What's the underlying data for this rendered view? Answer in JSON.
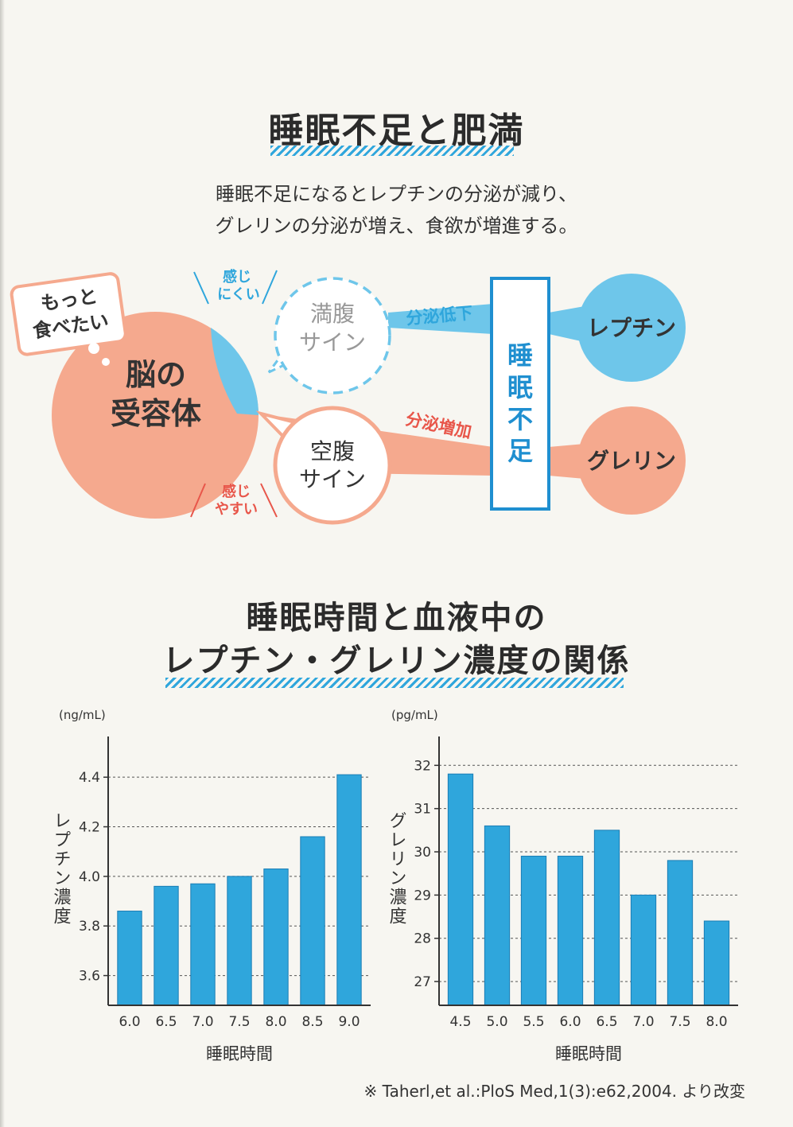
{
  "section1": {
    "title": "睡眠不足と肥満",
    "subtitle_line1": "睡眠不足になるとレプチンの分泌が減り、",
    "subtitle_line2": "グレリンの分泌が増え、食欲が増進する。"
  },
  "diagram": {
    "thought_line1": "もっと",
    "thought_line2": "食べたい",
    "brain_line1": "脳の",
    "brain_line2": "受容体",
    "hard_to_feel_line1": "感じ",
    "hard_to_feel_line2": "にくい",
    "easy_to_feel_line1": "感じ",
    "easy_to_feel_line2": "やすい",
    "full_line1": "満腹",
    "full_line2": "サイン",
    "hungry_line1": "空腹",
    "hungry_line2": "サイン",
    "decrease": "分泌低下",
    "increase": "分泌増加",
    "sleep_chars": [
      "睡",
      "眠",
      "不",
      "足"
    ],
    "leptin": "レプチン",
    "ghrelin": "グレリン",
    "colors": {
      "blue": "#6ec6ea",
      "orange": "#f5a98e",
      "red": "#e8564a",
      "box": "#1f8fd0"
    }
  },
  "section2": {
    "title_line1": "睡眠時間と血液中の",
    "title_line2": "レプチン・グレリン濃度の関係"
  },
  "chart_data": [
    {
      "type": "bar",
      "unit": "(ng/mL)",
      "ylabel": "レプチン濃度",
      "xlabel": "睡眠時間",
      "categories": [
        "6.0",
        "6.5",
        "7.0",
        "7.5",
        "8.0",
        "8.5",
        "9.0"
      ],
      "values": [
        3.86,
        3.96,
        3.97,
        4.0,
        4.03,
        4.16,
        4.41
      ],
      "yticks": [
        "3.6",
        "3.8",
        "4.0",
        "4.2",
        "4.4"
      ],
      "ylim": [
        3.48,
        4.5
      ],
      "grid": true,
      "color": "#2fa6dc"
    },
    {
      "type": "bar",
      "unit": "(pg/mL)",
      "ylabel": "グレリン濃度",
      "xlabel": "睡眠時間",
      "categories": [
        "4.5",
        "5.0",
        "5.5",
        "6.0",
        "6.5",
        "7.0",
        "7.5",
        "8.0"
      ],
      "values": [
        31.8,
        30.6,
        29.9,
        29.9,
        30.5,
        29.0,
        29.8,
        28.4
      ],
      "yticks": [
        "27",
        "28",
        "29",
        "30",
        "31",
        "32"
      ],
      "ylim": [
        26.45,
        32.3
      ],
      "grid": true,
      "color": "#2fa6dc"
    }
  ],
  "source_note": "※ Taherl,et al.:PloS Med,1(3):e62,2004. より改変"
}
